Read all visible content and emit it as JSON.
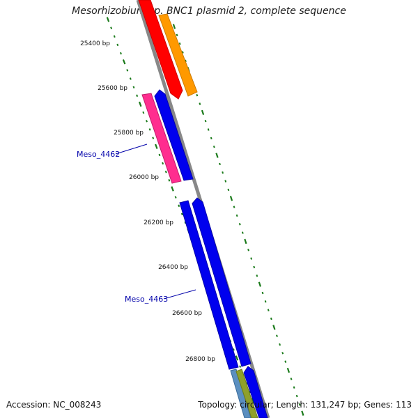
{
  "title": "Mesorhizobium sp. BNC1 plasmid 2, complete sequence",
  "footer": {
    "accession": "Accession: NC_008243",
    "summary": "Topology: circular; Length: 131,247 bp; Genes: 113"
  },
  "position_labels": [
    "25400 bp",
    "25600 bp",
    "25800 bp",
    "26000 bp",
    "26200 bp",
    "26400 bp",
    "26600 bp",
    "26800 bp"
  ],
  "gene_labels": [
    "Meso_4462",
    "Meso_4463"
  ],
  "colors": {
    "backbone": "#888888",
    "tick": "#1a7a1a",
    "red_feature": "#ff0000",
    "orange_feature": "#ff9900",
    "pink_feature": "#ff2d8f",
    "blue_feature": "#0000ee",
    "steel_feature": "#5b8fc0",
    "olive_feature": "#8fa02a",
    "label": "#0000aa"
  }
}
